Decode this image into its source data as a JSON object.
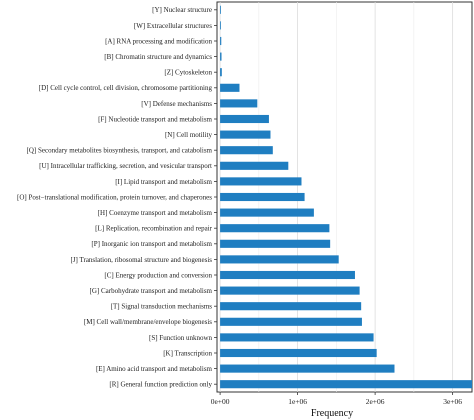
{
  "chart_data": {
    "type": "bar",
    "orientation": "horizontal",
    "title": "",
    "xlabel": "Frequency",
    "ylabel": "",
    "xlim": [
      -40000,
      3250000
    ],
    "xticks": [
      0,
      1000000,
      2000000,
      3000000
    ],
    "xtick_labels": [
      "0e+00",
      "1e+06",
      "2e+06",
      "3e+06"
    ],
    "grid": true,
    "bar_color": "#1f7ec1",
    "categories": [
      "[Y] Nuclear structure",
      "[W] Extracellular structures",
      "[A] RNA processing and modification",
      "[B] Chromatin structure and dynamics",
      "[Z] Cytoskeleton",
      "[D] Cell cycle control, cell division, chromosome partitioning",
      "[V] Defense mechanisms",
      "[F] Nucleotide transport and metabolism",
      "[N] Cell motility",
      "[Q] Secondary metabolites biosynthesis, transport, and catabolism",
      "[U] Intracellular trafficking, secretion, and vesicular transport",
      "[I] Lipid transport and metabolism",
      "[O] Post−translational modification, protein turnover, and chaperones",
      "[H] Coenzyme transport and metabolism",
      "[L] Replication, recombination and repair",
      "[P] Inorganic ion transport and metabolism",
      "[J] Translation, ribosomal structure and biogenesis",
      "[C] Energy production and conversion",
      "[G] Carbohydrate transport and metabolism",
      "[T] Signal transduction mechanisms",
      "[M] Cell wall/membrane/envelope biogenesis",
      "[S] Function unknown",
      "[K] Transcription",
      "[E] Amino acid transport and metabolism",
      "[R] General function prediction only"
    ],
    "values": [
      2000,
      3000,
      15000,
      18000,
      22000,
      250000,
      480000,
      630000,
      650000,
      680000,
      880000,
      1050000,
      1090000,
      1210000,
      1410000,
      1420000,
      1530000,
      1740000,
      1800000,
      1820000,
      1830000,
      1980000,
      2020000,
      2250000,
      3250000
    ]
  }
}
